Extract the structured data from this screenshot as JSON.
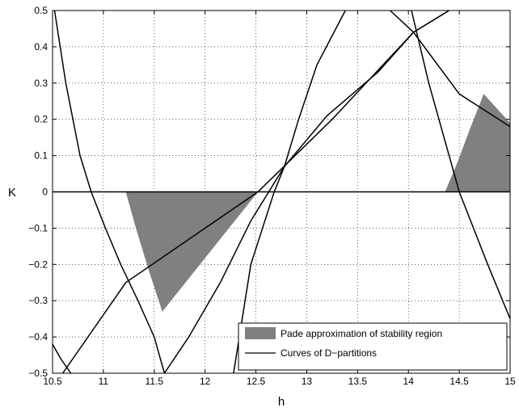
{
  "chart_data": {
    "type": "line",
    "title": "",
    "xlabel": "h",
    "ylabel": "K",
    "xlim": [
      10.5,
      15
    ],
    "ylim": [
      -0.5,
      0.5
    ],
    "xticks": [
      10.5,
      11,
      11.5,
      12,
      12.5,
      13,
      13.5,
      14,
      14.5,
      15
    ],
    "yticks": [
      -0.5,
      -0.4,
      -0.3,
      -0.2,
      -0.1,
      0,
      0.1,
      0.2,
      0.3,
      0.4,
      0.5
    ],
    "x_tick_labels": [
      "10.5",
      "11",
      "11.5",
      "12",
      "12.5",
      "13",
      "13.5",
      "14",
      "14.5",
      "15"
    ],
    "y_tick_labels": [
      "−0.5",
      "−0.4",
      "−0.3",
      "−0.2",
      "−0.1",
      "0",
      "0.1",
      "0.2",
      "0.3",
      "0.4",
      "0.5"
    ],
    "grid": true,
    "legend_position": "bottom-right",
    "colors": {
      "region": "#808080",
      "curve": "#000000"
    },
    "legend": [
      {
        "label": "Pade approximation of stability region",
        "kind": "patch"
      },
      {
        "label": "Curves of D−partitions",
        "kind": "line"
      }
    ],
    "regions": [
      {
        "name": "Pade approximation of stability region",
        "points": [
          [
            11.22,
            0
          ],
          [
            12.52,
            0
          ],
          [
            11.58,
            -0.33
          ],
          [
            11.45,
            -0.22
          ],
          [
            11.32,
            -0.1
          ]
        ]
      },
      {
        "name": "Pade approximation of stability region",
        "points": [
          [
            14.36,
            0
          ],
          [
            15,
            0
          ],
          [
            15,
            0.19
          ],
          [
            14.74,
            0.27
          ],
          [
            14.6,
            0.17
          ],
          [
            14.48,
            0.08
          ]
        ]
      }
    ],
    "curves": [
      {
        "points": [
          [
            10.5,
            0
          ],
          [
            15,
            0
          ]
        ]
      },
      {
        "points": [
          [
            10.6,
            -0.5
          ],
          [
            11.22,
            -0.25
          ],
          [
            12.52,
            0
          ],
          [
            13.25,
            0.2
          ],
          [
            14.05,
            0.44
          ],
          [
            14.4,
            0.5
          ]
        ]
      },
      {
        "points": [
          [
            10.52,
            0.5
          ],
          [
            10.63,
            0.3
          ],
          [
            10.77,
            0.1
          ],
          [
            10.88,
            0
          ],
          [
            11.02,
            -0.1
          ],
          [
            11.17,
            -0.2
          ],
          [
            11.34,
            -0.3
          ],
          [
            11.5,
            -0.4
          ],
          [
            11.6,
            -0.5
          ]
        ]
      },
      {
        "points": [
          [
            12.28,
            -0.5
          ],
          [
            12.45,
            -0.2
          ],
          [
            12.68,
            0
          ],
          [
            12.78,
            0.07
          ],
          [
            12.92,
            0.2
          ],
          [
            13.1,
            0.35
          ],
          [
            13.38,
            0.5
          ]
        ]
      },
      {
        "points": [
          [
            10.5,
            -0.42
          ],
          [
            10.58,
            -0.46
          ],
          [
            10.68,
            -0.5
          ]
        ]
      },
      {
        "points": [
          [
            11.6,
            -0.5
          ],
          [
            11.84,
            -0.4
          ],
          [
            12.15,
            -0.25
          ],
          [
            12.45,
            -0.08
          ],
          [
            12.78,
            0.07
          ],
          [
            13.2,
            0.21
          ],
          [
            13.7,
            0.33
          ],
          [
            14.05,
            0.44
          ],
          [
            14.4,
            0.5
          ]
        ]
      },
      {
        "points": [
          [
            13.82,
            0.5
          ],
          [
            14.05,
            0.44
          ],
          [
            14.5,
            0.27
          ],
          [
            15,
            0.18
          ]
        ]
      },
      {
        "points": [
          [
            14.03,
            0.5
          ],
          [
            14.2,
            0.3
          ],
          [
            14.5,
            0
          ],
          [
            14.78,
            -0.2
          ],
          [
            15,
            -0.35
          ]
        ]
      }
    ]
  }
}
